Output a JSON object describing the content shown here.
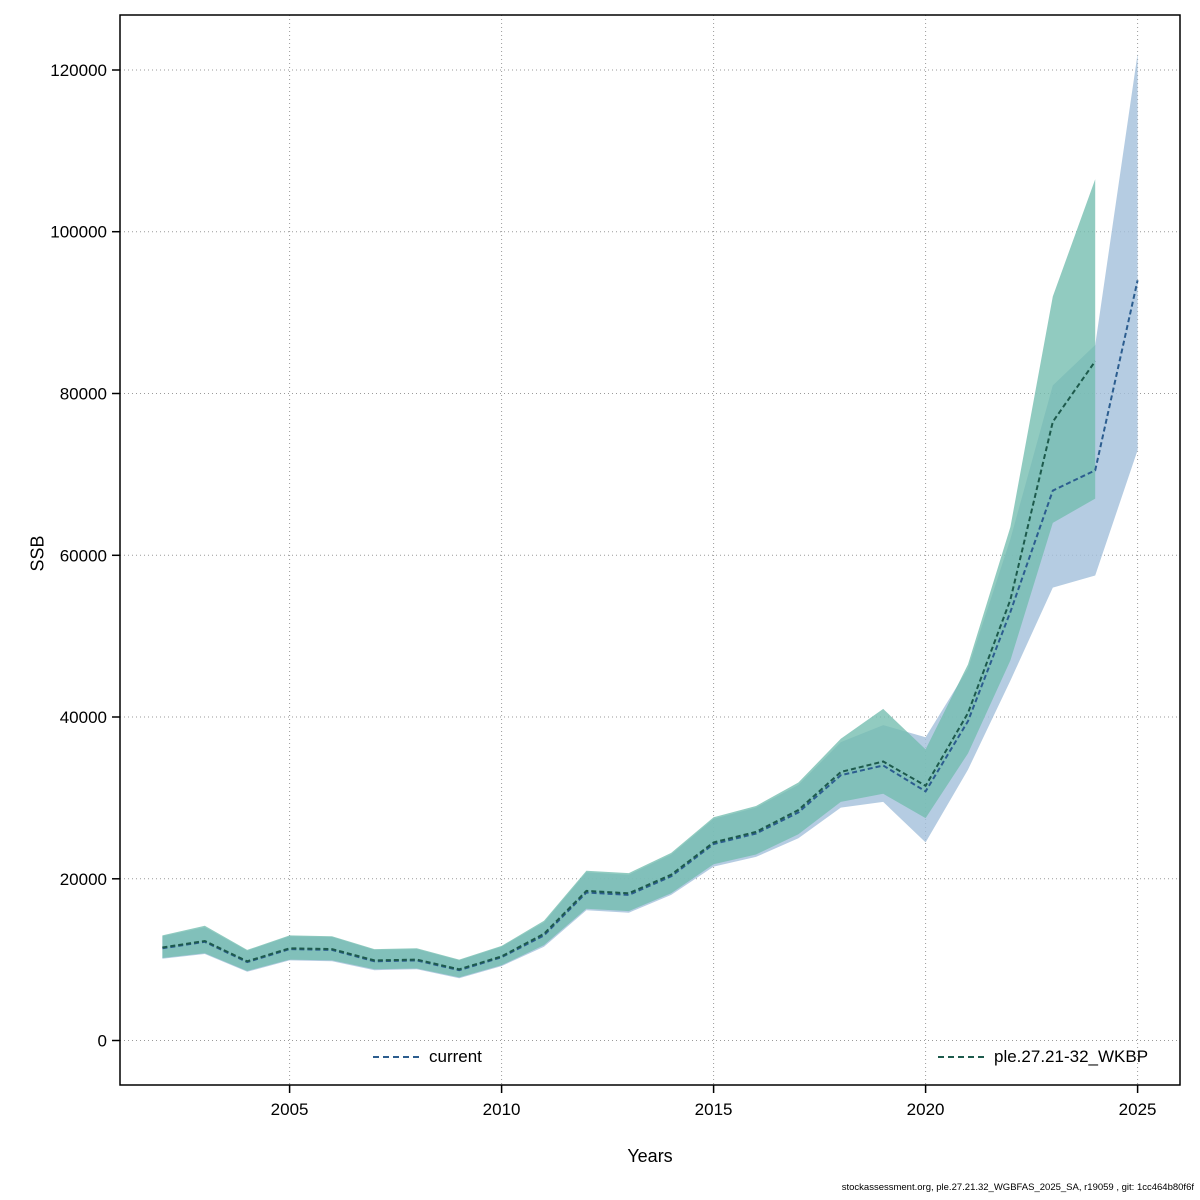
{
  "page": {
    "footer": "stockassessment.org, ple.27.21.32_WGBFAS_2025_SA, r19059 , git: 1cc464b80f6f"
  },
  "chart_data": {
    "type": "line",
    "title": "",
    "xlabel": "Years",
    "ylabel": "SSB",
    "xlim": [
      2001,
      2026
    ],
    "ylim": [
      -5500,
      126800
    ],
    "x_ticks": [
      2005,
      2010,
      2015,
      2020,
      2025
    ],
    "y_ticks": [
      0,
      20000,
      40000,
      60000,
      80000,
      100000,
      120000
    ],
    "grid": "dotted",
    "legend_position": "bottom-inside",
    "series": [
      {
        "name": "current",
        "line_color": "#2c5d8f",
        "band_color": "#a3bfdb",
        "band_opacity": 0.8,
        "line_style": "dashed",
        "years": [
          2002,
          2003,
          2004,
          2005,
          2006,
          2007,
          2008,
          2009,
          2010,
          2011,
          2012,
          2013,
          2014,
          2015,
          2016,
          2017,
          2018,
          2019,
          2020,
          2021,
          2022,
          2023,
          2024,
          2025
        ],
        "mid": [
          11400,
          12200,
          9700,
          11300,
          11200,
          9800,
          9900,
          8700,
          10300,
          13000,
          18300,
          18000,
          20300,
          24300,
          25600,
          28200,
          32800,
          34000,
          30800,
          39500,
          53000,
          68000,
          70500,
          94000
        ],
        "lo": [
          10100,
          10700,
          8500,
          9900,
          9800,
          8700,
          8800,
          7700,
          9200,
          11600,
          16100,
          15800,
          18000,
          21500,
          22700,
          25000,
          28800,
          29500,
          24500,
          33500,
          44500,
          56000,
          57500,
          73000
        ],
        "hi": [
          12900,
          14000,
          11100,
          12900,
          12800,
          11200,
          11300,
          9900,
          11600,
          14600,
          20800,
          20500,
          23000,
          27400,
          28800,
          31600,
          36900,
          39000,
          37500,
          46000,
          62000,
          81000,
          86000,
          122000
        ]
      },
      {
        "name": "ple.27.21-32_WKBP",
        "line_color": "#1d5a4c",
        "band_color": "#72bcae",
        "band_opacity": 0.78,
        "line_style": "dashed",
        "years": [
          2002,
          2003,
          2004,
          2005,
          2006,
          2007,
          2008,
          2009,
          2010,
          2011,
          2012,
          2013,
          2014,
          2015,
          2016,
          2017,
          2018,
          2019,
          2020,
          2021,
          2022,
          2023,
          2024
        ],
        "mid": [
          11500,
          12300,
          9800,
          11400,
          11300,
          9900,
          10000,
          8800,
          10400,
          13200,
          18500,
          18200,
          20500,
          24500,
          25800,
          28500,
          33200,
          34500,
          31500,
          40500,
          54500,
          76500,
          84000
        ],
        "lo": [
          10200,
          10800,
          8600,
          10000,
          9900,
          8800,
          8900,
          7800,
          9300,
          11800,
          16300,
          16000,
          18200,
          21800,
          23000,
          25500,
          29500,
          30500,
          27500,
          35500,
          47000,
          64000,
          67000
        ],
        "hi": [
          13000,
          14200,
          11200,
          13000,
          12900,
          11300,
          11400,
          10000,
          11700,
          14800,
          21000,
          20700,
          23200,
          27600,
          29000,
          31900,
          37300,
          41000,
          36000,
          46500,
          63500,
          92000,
          106500
        ]
      }
    ]
  }
}
